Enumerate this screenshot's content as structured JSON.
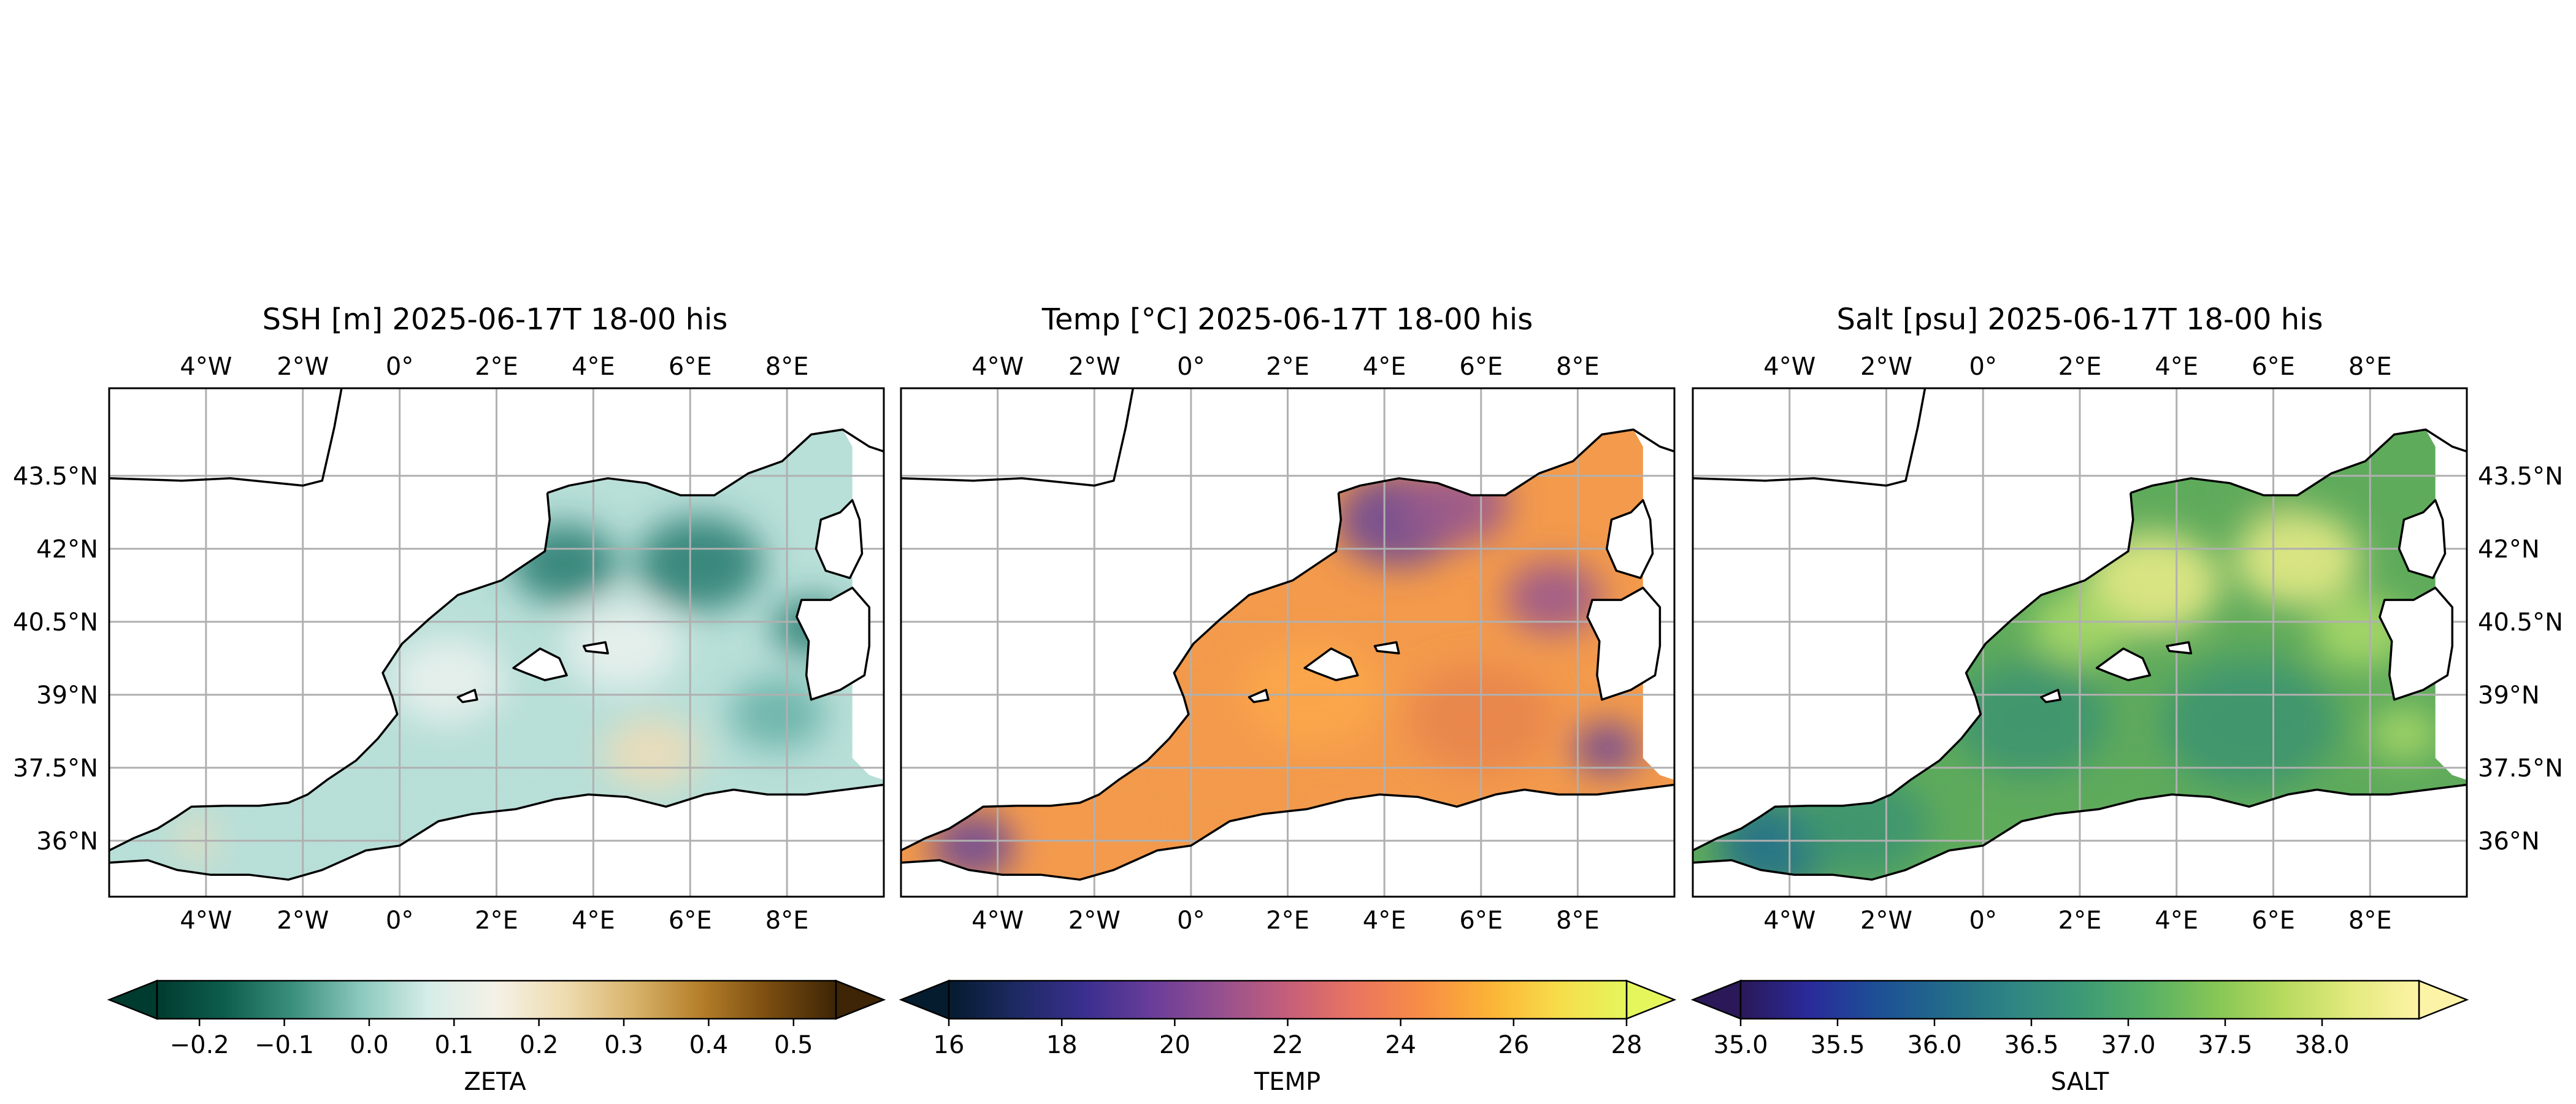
{
  "chart_data": [
    {
      "type": "heatmap",
      "title": "SSH [m] 2025-06-17T 18-00 his",
      "variable": "ZETA",
      "x_ticks": [
        "4°W",
        "2°W",
        "0°",
        "2°E",
        "4°E",
        "6°E",
        "8°E"
      ],
      "x_values": [
        -4,
        -2,
        0,
        2,
        4,
        6,
        8
      ],
      "y_ticks": [
        "43.5°N",
        "42°N",
        "40.5°N",
        "39°N",
        "37.5°N",
        "36°N"
      ],
      "y_values": [
        43.5,
        42,
        40.5,
        39,
        37.5,
        36
      ],
      "xlim": [
        -6,
        10
      ],
      "ylim": [
        34.85,
        45.3
      ],
      "grid": true,
      "colorbar": {
        "label": "ZETA",
        "ticks": [
          "−0.2",
          "−0.1",
          "0.0",
          "0.1",
          "0.2",
          "0.3",
          "0.4",
          "0.5"
        ],
        "tick_values": [
          -0.2,
          -0.1,
          0.0,
          0.1,
          0.2,
          0.3,
          0.4,
          0.5
        ],
        "range": [
          -0.25,
          0.55
        ],
        "extend": "both",
        "colormap": [
          "#003b2f",
          "#0e5e4d",
          "#3b8f7d",
          "#8bc9bd",
          "#d6ede8",
          "#f5f1e6",
          "#eedcb0",
          "#d9b46c",
          "#b57f2a",
          "#7a4d10",
          "#3d2506"
        ]
      },
      "field_colors": [
        "#b8dfd8",
        "#69b3a8",
        "#2f7f73",
        "#e9f1ed",
        "#ecdcb8"
      ]
    },
    {
      "type": "heatmap",
      "title": "Temp [°C] 2025-06-17T 18-00 his",
      "variable": "TEMP",
      "x_ticks": [
        "4°W",
        "2°W",
        "0°",
        "2°E",
        "4°E",
        "6°E",
        "8°E"
      ],
      "x_values": [
        -4,
        -2,
        0,
        2,
        4,
        6,
        8
      ],
      "xlim": [
        -6,
        10
      ],
      "ylim": [
        34.85,
        45.3
      ],
      "grid": true,
      "colorbar": {
        "label": "TEMP",
        "ticks": [
          "16",
          "18",
          "20",
          "22",
          "24",
          "26",
          "28"
        ],
        "tick_values": [
          16,
          18,
          20,
          22,
          24,
          26,
          28
        ],
        "range": [
          16,
          28
        ],
        "extend": "both",
        "colormap": [
          "#051b2e",
          "#1d2a63",
          "#3a2f8f",
          "#6a3d99",
          "#96508f",
          "#c55f7a",
          "#ea7560",
          "#f88e45",
          "#fbb437",
          "#f7dd4a",
          "#e5f65d"
        ]
      },
      "field_colors": [
        "#f39a4c",
        "#e8854e",
        "#9b5a8c",
        "#6f4a95",
        "#fca64a"
      ]
    },
    {
      "type": "heatmap",
      "title": "Salt [psu] 2025-06-17T 18-00 his",
      "variable": "SALT",
      "x_ticks": [
        "4°W",
        "2°W",
        "0°",
        "2°E",
        "4°E",
        "6°E",
        "8°E"
      ],
      "x_values": [
        -4,
        -2,
        0,
        2,
        4,
        6,
        8
      ],
      "y_ticks": [
        "43.5°N",
        "42°N",
        "40.5°N",
        "39°N",
        "37.5°N",
        "36°N"
      ],
      "y_values": [
        43.5,
        42,
        40.5,
        39,
        37.5,
        36
      ],
      "xlim": [
        -6,
        10
      ],
      "ylim": [
        34.85,
        45.3
      ],
      "grid": true,
      "colorbar": {
        "label": "SALT",
        "ticks": [
          "35.0",
          "35.5",
          "36.0",
          "36.5",
          "37.0",
          "37.5",
          "38.0"
        ],
        "tick_values": [
          35.0,
          35.5,
          36.0,
          36.5,
          37.0,
          37.5,
          38.0
        ],
        "range": [
          35.0,
          38.5
        ],
        "extend": "both",
        "colormap": [
          "#2a1858",
          "#2a2a9a",
          "#1d4f96",
          "#226a8a",
          "#2f8583",
          "#3c9a76",
          "#58b065",
          "#86c656",
          "#b7da5e",
          "#e3ea7e",
          "#fdf3a6"
        ]
      },
      "field_colors": [
        "#5fab5c",
        "#3d9470",
        "#a9d868",
        "#e6ea86",
        "#26708a"
      ]
    }
  ]
}
